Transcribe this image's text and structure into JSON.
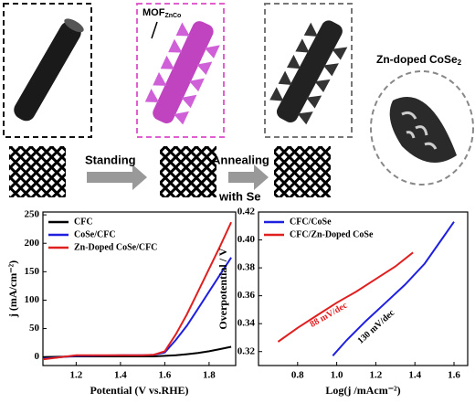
{
  "schematic": {
    "mof_label": "MOF",
    "mof_subscript": "ZnCo",
    "product_label": "Zn-doped CoSe",
    "product_subscript": "2",
    "step1": "Standing",
    "step2": "Annealing",
    "step2_line2": "with Se"
  },
  "chart_data": [
    {
      "type": "line",
      "xlabel": "Potential (V vs.RHE)",
      "ylabel": "j (mA/cm⁻²)",
      "x": [
        1.05,
        1.2,
        1.4,
        1.5,
        1.55,
        1.6,
        1.65,
        1.7,
        1.75,
        1.8,
        1.85,
        1.9
      ],
      "xlim": [
        1.05,
        1.92
      ],
      "xticks": [
        1.2,
        1.4,
        1.6,
        1.8
      ],
      "ylim": [
        -15,
        255
      ],
      "yticks": [
        0,
        50,
        100,
        150,
        200,
        250
      ],
      "series": [
        {
          "name": "CFC",
          "color": "#000000",
          "values": [
            0,
            1,
            1,
            1,
            1,
            2,
            3,
            5,
            7,
            10,
            14,
            18
          ]
        },
        {
          "name": "CoSe/CFC",
          "color": "#1f1fe0",
          "values": [
            -3,
            2,
            3,
            3,
            4,
            8,
            30,
            55,
            85,
            115,
            145,
            175
          ]
        },
        {
          "name": "Zn-Doped CoSe/CFC",
          "color": "#e01f1f",
          "values": [
            -4,
            3,
            3,
            3,
            4,
            10,
            40,
            75,
            115,
            155,
            195,
            237
          ]
        }
      ]
    },
    {
      "type": "line",
      "xlabel": "Log(j /mAcm⁻²)",
      "ylabel": "Overpotential / V",
      "xlim": [
        0.6,
        1.67
      ],
      "xticks": [
        0.8,
        {
          "value": 1.0,
          "label": "1.0"
        },
        1.2,
        1.4,
        1.6
      ],
      "ylim": [
        0.31,
        0.42
      ],
      "yticks": [
        0.32,
        0.34,
        0.36,
        0.38,
        {
          "value": 0.4,
          "label": "0.40"
        },
        0.42
      ],
      "annotations": [
        "88 mV/dec",
        "130 mV/dec"
      ],
      "series": [
        {
          "name": "CFC/CoSe",
          "color": "#1f1fe0",
          "x": [
            0.98,
            1.05,
            1.15,
            1.25,
            1.35,
            1.45,
            1.55,
            1.6
          ],
          "values": [
            0.317,
            0.328,
            0.342,
            0.355,
            0.368,
            0.383,
            0.403,
            0.413
          ]
        },
        {
          "name": "CFC/Zn-Doped CoSe",
          "color": "#e01f1f",
          "x": [
            0.7,
            0.8,
            0.9,
            1.0,
            1.1,
            1.2,
            1.3,
            1.39
          ],
          "values": [
            0.327,
            0.337,
            0.346,
            0.355,
            0.363,
            0.372,
            0.381,
            0.391
          ]
        }
      ]
    }
  ]
}
